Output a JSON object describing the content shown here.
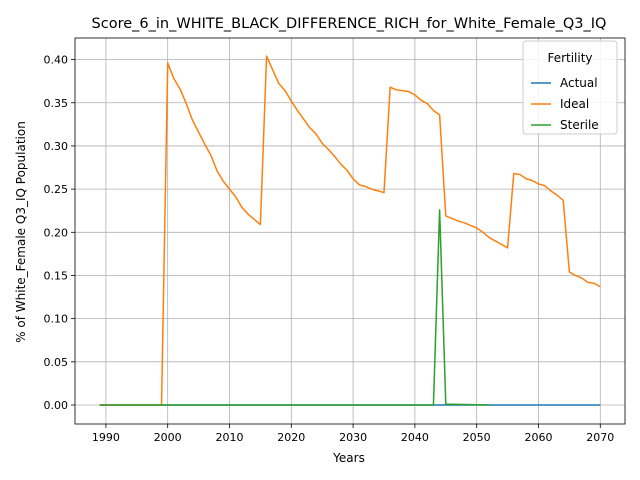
{
  "chart_data": {
    "type": "line",
    "title": "Score_6_in_WHITE_BLACK_DIFFERENCE_RICH_for_White_Female_Q3_IQ",
    "xlabel": "Years",
    "ylabel": "% of White_Female Q3_IQ Population",
    "xlim": [
      1985,
      2074
    ],
    "ylim": [
      -0.022,
      0.425
    ],
    "xticks": [
      1990,
      2000,
      2010,
      2020,
      2030,
      2040,
      2050,
      2060,
      2070
    ],
    "xtick_labels": [
      "1990",
      "2000",
      "2010",
      "2020",
      "2030",
      "2040",
      "2050",
      "2060",
      "2070"
    ],
    "yticks": [
      0.0,
      0.05,
      0.1,
      0.15,
      0.2,
      0.25,
      0.3,
      0.35,
      0.4
    ],
    "ytick_labels": [
      "0.00",
      "0.05",
      "0.10",
      "0.15",
      "0.20",
      "0.25",
      "0.30",
      "0.35",
      "0.40"
    ],
    "grid": true,
    "legend": {
      "title": "Fertility",
      "position": "top-right"
    },
    "series": [
      {
        "name": "Actual",
        "color": "#1f77b4",
        "x": [
          1989,
          2070
        ],
        "y": [
          0.0,
          0.0
        ]
      },
      {
        "name": "Ideal",
        "color": "#ff7f0e",
        "x": [
          1989,
          1999,
          2000,
          2001,
          2002,
          2003,
          2004,
          2005,
          2006,
          2007,
          2008,
          2009,
          2010,
          2011,
          2012,
          2013,
          2014,
          2015,
          2016,
          2017,
          2018,
          2019,
          2020,
          2021,
          2022,
          2023,
          2024,
          2025,
          2026,
          2027,
          2028,
          2029,
          2030,
          2031,
          2032,
          2033,
          2034,
          2035,
          2036,
          2037,
          2038,
          2039,
          2040,
          2041,
          2042,
          2043,
          2044,
          2045,
          2046,
          2047,
          2048,
          2049,
          2050,
          2051,
          2052,
          2053,
          2054,
          2055,
          2056,
          2057,
          2058,
          2059,
          2060,
          2061,
          2062,
          2063,
          2064,
          2065,
          2066,
          2067,
          2068,
          2069,
          2070
        ],
        "y": [
          0.0,
          0.0,
          0.396,
          0.378,
          0.366,
          0.349,
          0.33,
          0.316,
          0.302,
          0.289,
          0.271,
          0.259,
          0.25,
          0.241,
          0.229,
          0.221,
          0.215,
          0.209,
          0.404,
          0.388,
          0.372,
          0.364,
          0.352,
          0.341,
          0.331,
          0.321,
          0.314,
          0.303,
          0.296,
          0.288,
          0.279,
          0.272,
          0.262,
          0.255,
          0.253,
          0.25,
          0.248,
          0.246,
          0.368,
          0.365,
          0.364,
          0.363,
          0.359,
          0.353,
          0.349,
          0.341,
          0.336,
          0.219,
          0.216,
          0.213,
          0.211,
          0.208,
          0.205,
          0.2,
          0.194,
          0.19,
          0.186,
          0.182,
          0.268,
          0.267,
          0.262,
          0.26,
          0.256,
          0.254,
          0.248,
          0.243,
          0.237,
          0.154,
          0.15,
          0.147,
          0.142,
          0.141,
          0.137
        ]
      },
      {
        "name": "Sterile",
        "color": "#2ca02c",
        "x": [
          1989,
          2043,
          2044,
          2045,
          2052
        ],
        "y": [
          0.0,
          0.0,
          0.226,
          0.001,
          0.0
        ]
      }
    ]
  }
}
